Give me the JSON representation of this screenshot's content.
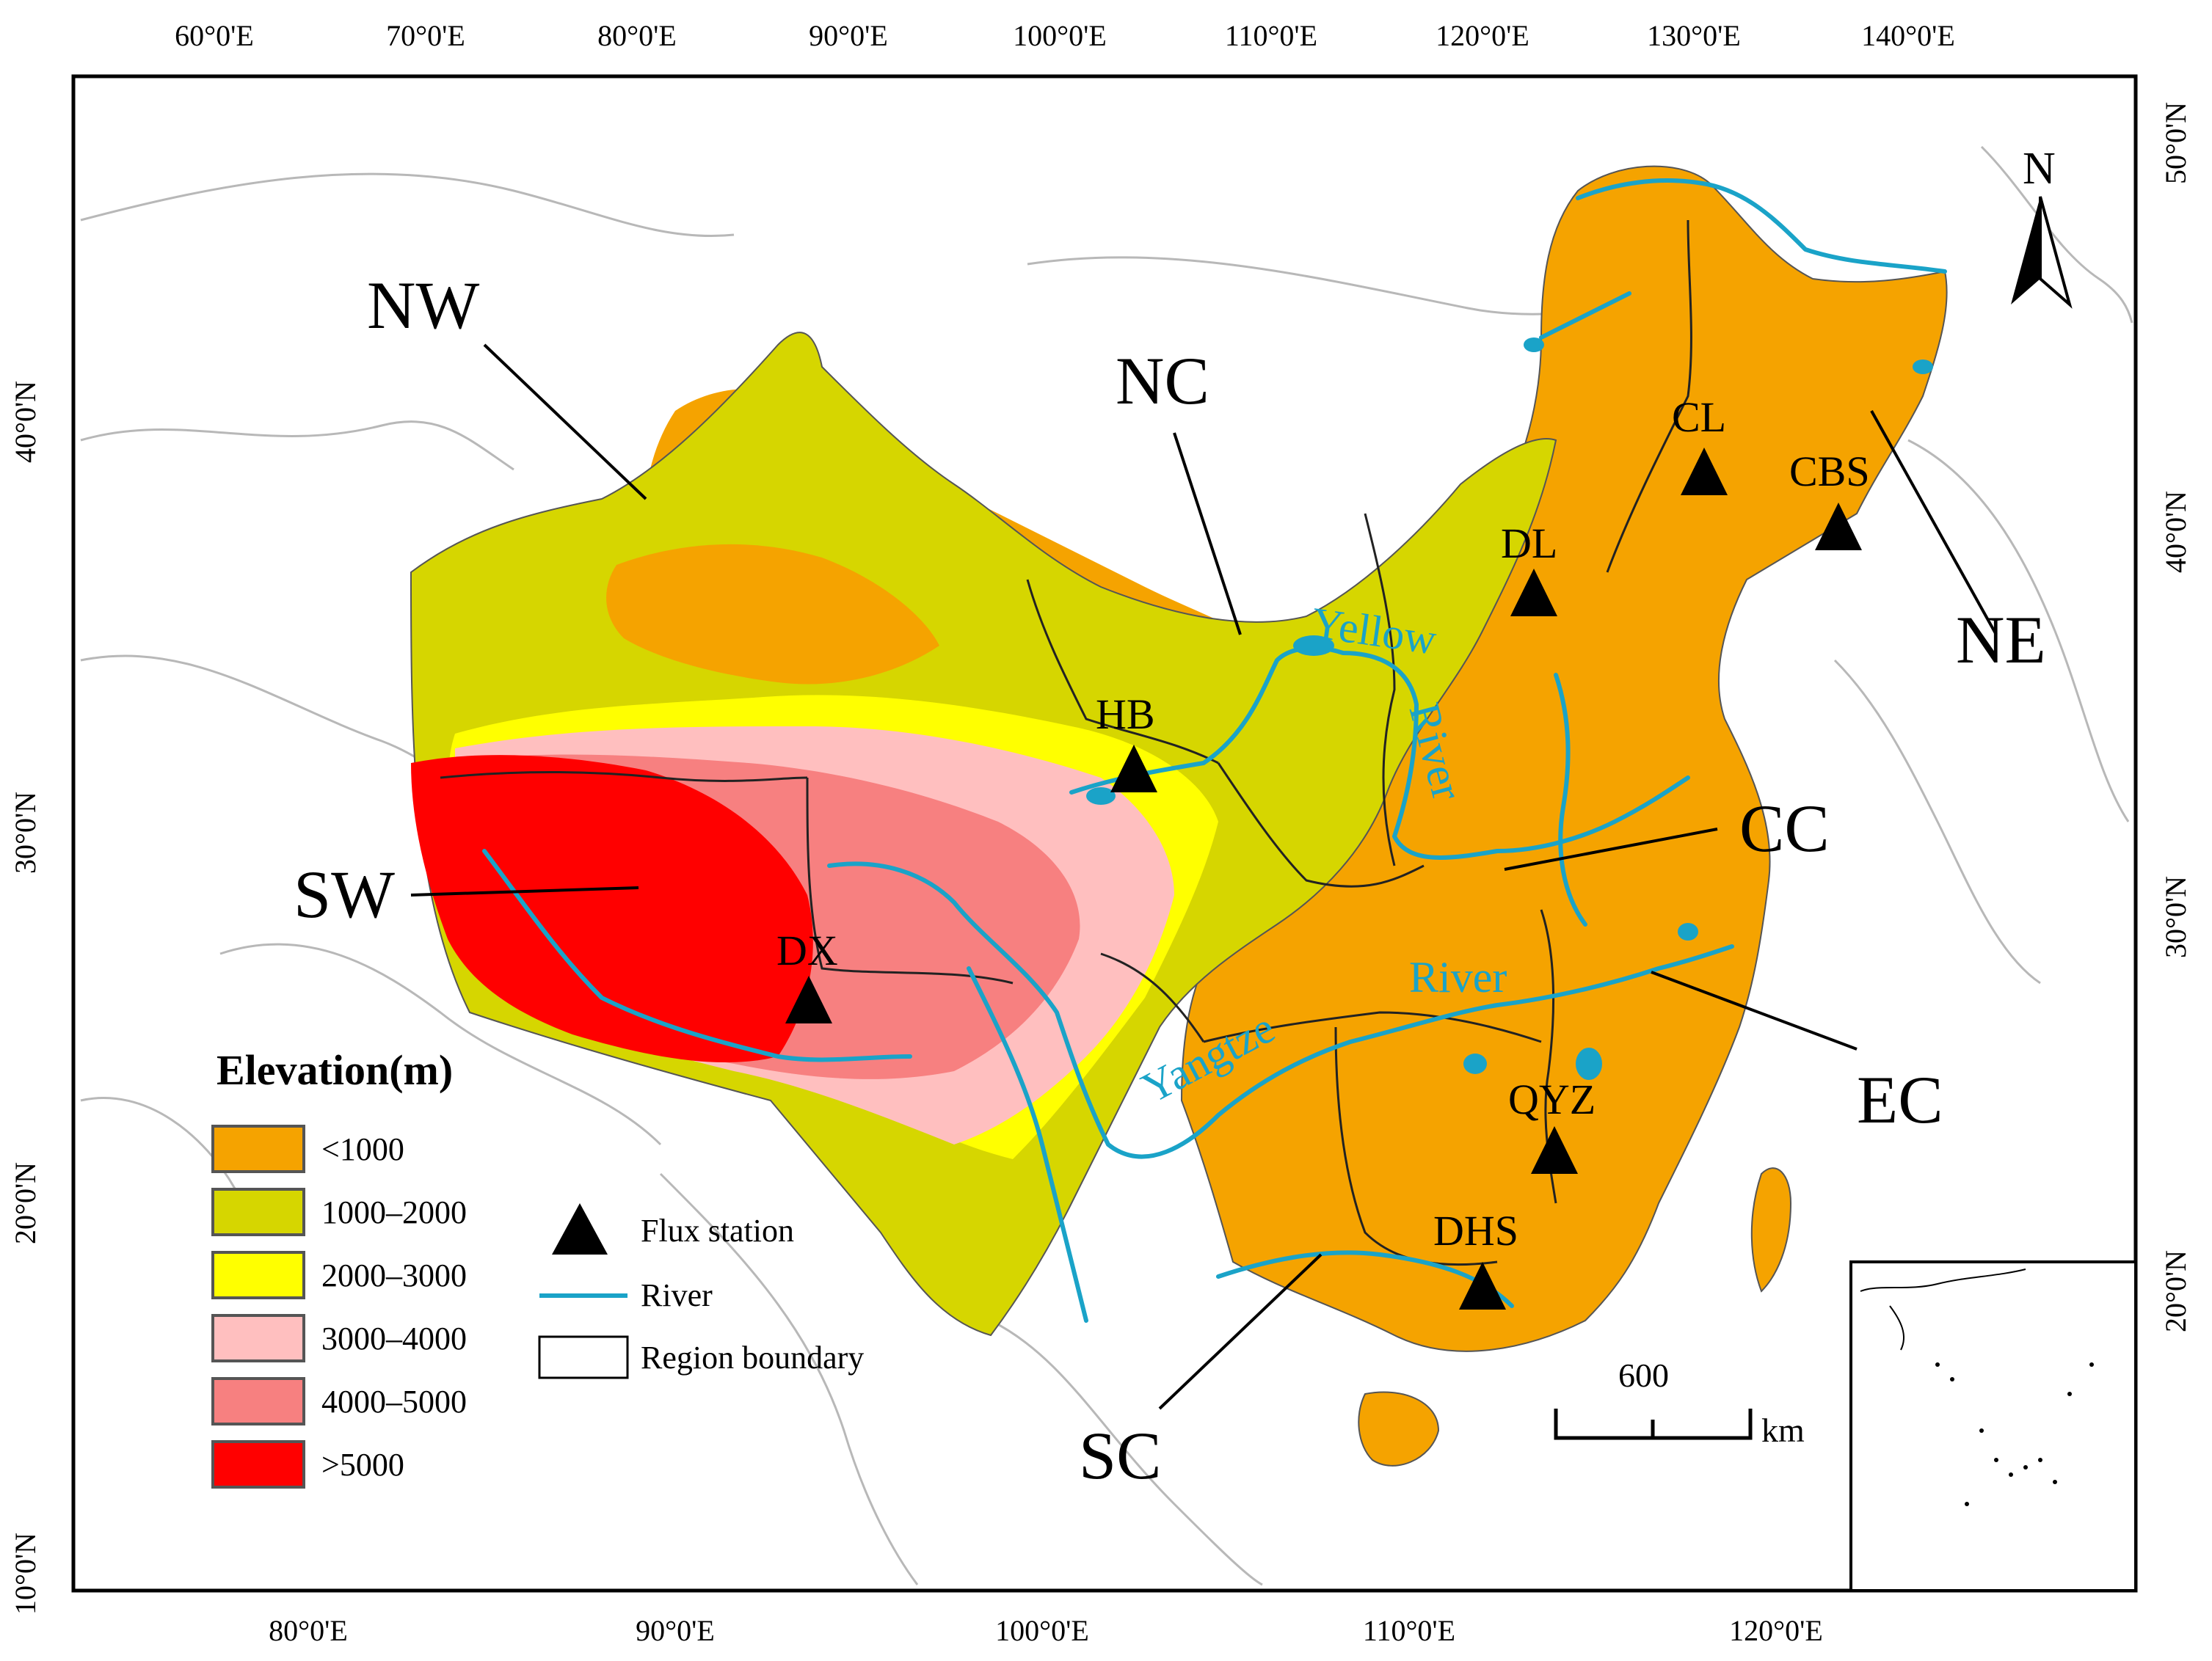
{
  "ticks": {
    "top": [
      "60°0'E",
      "70°0'E",
      "80°0'E",
      "90°0'E",
      "100°0'E",
      "110°0'E",
      "120°0'E",
      "130°0'E",
      "140°0'E"
    ],
    "bottom": [
      "80°0'E",
      "90°0'E",
      "100°0'E",
      "110°0'E",
      "120°0'E"
    ],
    "left": [
      "40°0'N",
      "30°0'N",
      "20°0'N",
      "10°0'N"
    ],
    "right": [
      "50°0'N",
      "40°0'N",
      "30°0'N",
      "20°0'N"
    ]
  },
  "regions": [
    "NW",
    "NC",
    "NE",
    "CC",
    "SW",
    "EC",
    "SC"
  ],
  "stations": [
    "CL",
    "CBS",
    "DL",
    "HB",
    "DX",
    "QYZ",
    "DHS"
  ],
  "rivers": [
    "Yellow",
    "River",
    "River",
    "Yangtze"
  ],
  "north_arrow": "N",
  "legend": {
    "title": "Elevation(m)",
    "classes": [
      {
        "label": "<1000",
        "color": "#f5a300"
      },
      {
        "label": "1000–2000",
        "color": "#d6d600"
      },
      {
        "label": "2000–3000",
        "color": "#ffff00"
      },
      {
        "label": "3000–4000",
        "color": "#ffbfbf"
      },
      {
        "label": "4000–5000",
        "color": "#f78080"
      },
      {
        "label": ">5000",
        "color": "#ff0000"
      }
    ],
    "symbols": [
      {
        "label": "Flux station",
        "icon": "triangle-icon"
      },
      {
        "label": "River",
        "icon": "river-line-icon",
        "color": "#1aa3c8"
      },
      {
        "label": "Region boundary",
        "icon": "region-boundary-icon"
      }
    ]
  },
  "scale_bar": {
    "value": "600",
    "unit": "km"
  },
  "colors": {
    "river": "#1aa3c8",
    "country_boundary": "#b0b0b0"
  }
}
